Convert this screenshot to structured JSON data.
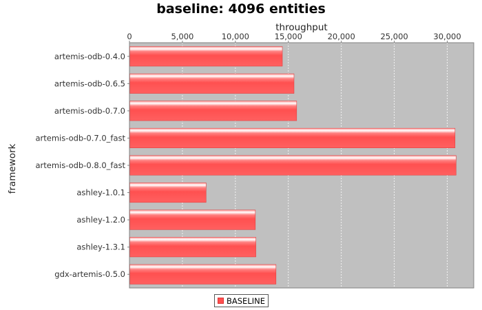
{
  "chart_data": {
    "type": "bar",
    "orientation": "horizontal",
    "title": "baseline: 4096 entities",
    "xlabel": "throughput",
    "ylabel": "framework",
    "categories": [
      "artemis-odb-0.4.0",
      "artemis-odb-0.6.5",
      "artemis-odb-0.7.0",
      "artemis-odb-0.7.0_fast",
      "artemis-odb-0.8.0_fast",
      "ashley-1.0.1",
      "ashley-1.2.0",
      "ashley-1.3.1",
      "gdx-artemis-0.5.0"
    ],
    "series": [
      {
        "name": "BASELINE",
        "color": "#ff5050",
        "values": [
          14400,
          15500,
          15750,
          30700,
          30800,
          7200,
          11850,
          11900,
          13800
        ]
      }
    ],
    "xlim": [
      0,
      32500
    ],
    "x_ticks": [
      0,
      5000,
      10000,
      15000,
      20000,
      25000,
      30000
    ],
    "x_tick_labels": [
      "0",
      "5,000",
      "10,000",
      "15,000",
      "20,000",
      "25,000",
      "30,000"
    ],
    "x_axis_position": "top",
    "grid": true,
    "legend_position": "bottom",
    "plot_background": "#c0c0c0"
  }
}
